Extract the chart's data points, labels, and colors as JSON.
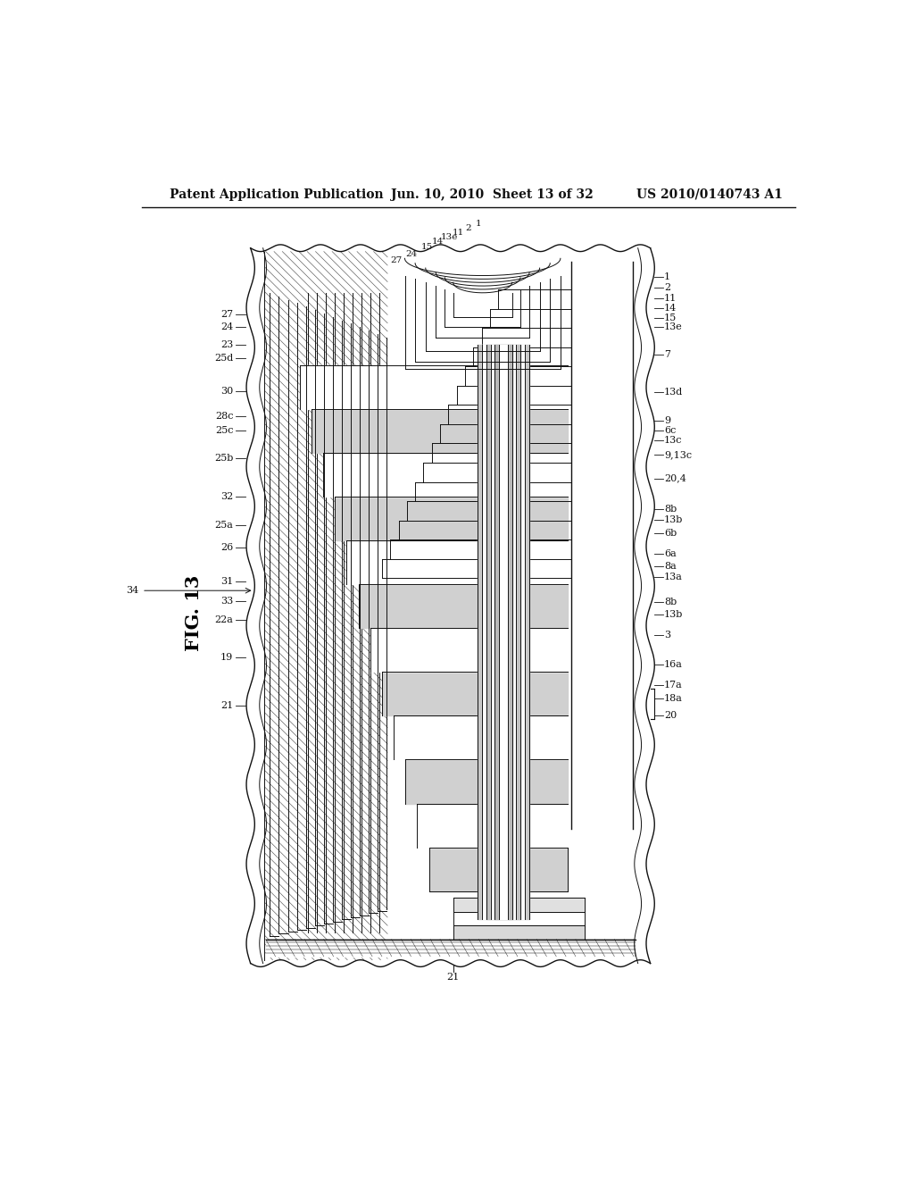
{
  "background_color": "#ffffff",
  "header_left": "Patent Application Publication",
  "header_mid": "Jun. 10, 2010  Sheet 13 of 32",
  "header_right": "US 2010/0140743 A1",
  "fig_label": "FIG. 13",
  "lc": "#111111",
  "labels_right": [
    [
      790,
      197,
      "1"
    ],
    [
      790,
      213,
      "2"
    ],
    [
      790,
      228,
      "11"
    ],
    [
      790,
      242,
      "14"
    ],
    [
      790,
      256,
      "15"
    ],
    [
      790,
      270,
      "13e"
    ],
    [
      790,
      310,
      "7"
    ],
    [
      790,
      365,
      "13d"
    ],
    [
      790,
      406,
      "9"
    ],
    [
      790,
      420,
      "6c"
    ],
    [
      790,
      435,
      "13c"
    ],
    [
      790,
      455,
      "9,13c"
    ],
    [
      790,
      490,
      "20,4"
    ],
    [
      790,
      535,
      "8b"
    ],
    [
      790,
      550,
      "13b"
    ],
    [
      790,
      570,
      "6b"
    ],
    [
      790,
      600,
      "6a"
    ],
    [
      790,
      618,
      "8a"
    ],
    [
      790,
      633,
      "13a"
    ],
    [
      790,
      670,
      "8b"
    ],
    [
      790,
      688,
      "13b"
    ],
    [
      790,
      718,
      "3"
    ],
    [
      790,
      760,
      "16a"
    ],
    [
      790,
      790,
      "17a"
    ],
    [
      790,
      810,
      "18a"
    ],
    [
      790,
      835,
      "20"
    ]
  ],
  "labels_left": [
    [
      175,
      252,
      "27"
    ],
    [
      175,
      270,
      "24"
    ],
    [
      175,
      295,
      "23"
    ],
    [
      175,
      315,
      "25d"
    ],
    [
      175,
      363,
      "30"
    ],
    [
      175,
      400,
      "28c"
    ],
    [
      175,
      420,
      "25c"
    ],
    [
      175,
      460,
      "25b"
    ],
    [
      175,
      517,
      "32"
    ],
    [
      175,
      558,
      "25a"
    ],
    [
      175,
      590,
      "26"
    ],
    [
      175,
      640,
      "31"
    ],
    [
      175,
      668,
      "33"
    ],
    [
      175,
      695,
      "22a"
    ],
    [
      175,
      750,
      "19"
    ],
    [
      175,
      820,
      "21"
    ],
    [
      40,
      653,
      "34"
    ]
  ],
  "labels_top": [
    [
      408,
      182,
      "27"
    ],
    [
      430,
      172,
      "24"
    ],
    [
      452,
      162,
      "15"
    ],
    [
      467,
      155,
      "14"
    ],
    [
      484,
      148,
      "13e"
    ],
    [
      497,
      141,
      "11"
    ],
    [
      512,
      135,
      "2"
    ],
    [
      527,
      128,
      "1"
    ]
  ]
}
